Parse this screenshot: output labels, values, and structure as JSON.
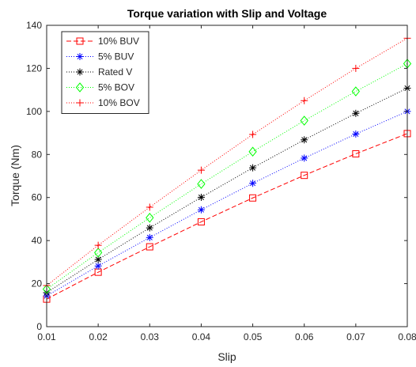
{
  "chart_data": {
    "type": "line",
    "title": "Torque variation with Slip and Voltage",
    "xlabel": "Slip",
    "ylabel": "Torque (Nm)",
    "xlim": [
      0.01,
      0.08
    ],
    "ylim": [
      0,
      140
    ],
    "x_ticks": [
      "0.01",
      "0.02",
      "0.03",
      "0.04",
      "0.05",
      "0.06",
      "0.07",
      "0.08"
    ],
    "y_ticks": [
      "0",
      "20",
      "40",
      "60",
      "80",
      "100",
      "120",
      "140"
    ],
    "x": [
      0.01,
      0.02,
      0.03,
      0.04,
      0.05,
      0.06,
      0.07,
      0.08
    ],
    "grid": false,
    "legend_position": "top-left",
    "series": [
      {
        "name": "10% BUV",
        "color": "#ff0000",
        "marker": "square",
        "line": "dashed",
        "values": [
          12.8,
          25.3,
          37.1,
          48.7,
          59.8,
          70.3,
          80.3,
          89.7
        ]
      },
      {
        "name": "5% BUV",
        "color": "#0000ff",
        "marker": "asterisk",
        "line": "dotted",
        "values": [
          14.3,
          28.2,
          41.4,
          54.3,
          66.6,
          78.3,
          89.5,
          100.0
        ]
      },
      {
        "name": "Rated V",
        "color": "#000000",
        "marker": "asterisk",
        "line": "dotted",
        "values": [
          15.8,
          31.2,
          45.9,
          60.1,
          73.8,
          86.8,
          99.1,
          110.8
        ]
      },
      {
        "name": "5% BOV",
        "color": "#00ff00",
        "marker": "diamond",
        "line": "dotted",
        "values": [
          17.4,
          34.4,
          50.6,
          66.3,
          81.3,
          95.7,
          109.3,
          122.2
        ]
      },
      {
        "name": "10% BOV",
        "color": "#ff0000",
        "marker": "plus",
        "line": "dotted",
        "values": [
          19.1,
          37.8,
          55.5,
          72.7,
          89.3,
          105.0,
          120.0,
          134.0
        ]
      }
    ]
  }
}
